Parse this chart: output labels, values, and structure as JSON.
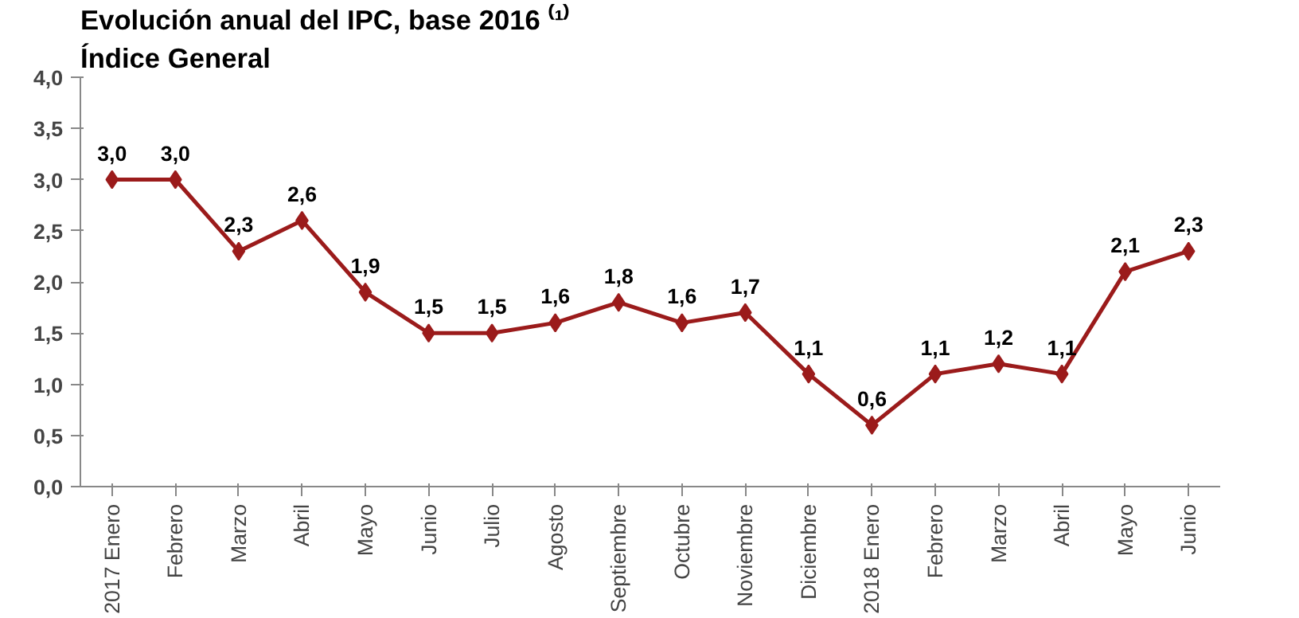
{
  "chart_data": {
    "type": "line",
    "title": "Evolución anual del IPC, base 2016 ⁽¹⁾",
    "subtitle": "Índice General",
    "categories": [
      "2017 Enero",
      "Febrero",
      "Marzo",
      "Abril",
      "Mayo",
      "Junio",
      "Julio",
      "Agosto",
      "Septiembre",
      "Octubre",
      "Noviembre",
      "Diciembre",
      "2018 Enero",
      "Febrero",
      "Marzo",
      "Abril",
      "Mayo",
      "Junio"
    ],
    "series": [
      {
        "color": "#9b1b1b",
        "values": [
          3.0,
          3.0,
          2.3,
          2.6,
          1.9,
          1.5,
          1.5,
          1.6,
          1.8,
          1.6,
          1.7,
          1.1,
          0.6,
          1.1,
          1.2,
          1.1,
          2.1,
          2.3
        ],
        "value_labels": [
          "3,0",
          "3,0",
          "2,3",
          "2,6",
          "1,9",
          "1,5",
          "1,5",
          "1,6",
          "1,8",
          "1,6",
          "1,7",
          "1,1",
          "0,6",
          "1,1",
          "1,2",
          "1,1",
          "2,1",
          "2,3"
        ]
      }
    ],
    "ylim": [
      0,
      4
    ],
    "yticks": [
      {
        "value": 0,
        "label": "0,0"
      },
      {
        "value": 0.5,
        "label": "0,5"
      },
      {
        "value": 1,
        "label": "1,0"
      },
      {
        "value": 1.5,
        "label": "1,5"
      },
      {
        "value": 2,
        "label": "2,0"
      },
      {
        "value": 2.5,
        "label": "2,5"
      },
      {
        "value": 3,
        "label": "3,0"
      },
      {
        "value": 3.5,
        "label": "3,5"
      },
      {
        "value": 4,
        "label": "4,0"
      }
    ],
    "grid": false,
    "marker": "diamond",
    "line_style": "solid"
  }
}
